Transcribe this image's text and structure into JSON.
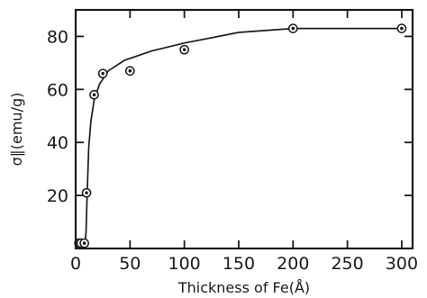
{
  "chart_data": {
    "type": "scatter",
    "title": "",
    "xlabel": "Thickness of Fe(Å)",
    "ylabel": "σ∥(emu/g)",
    "xlim": [
      0,
      310
    ],
    "ylim": [
      0,
      90
    ],
    "x_ticks": [
      "0",
      "50",
      "100",
      "150",
      "200",
      "250",
      "300"
    ],
    "y_ticks": [
      "20",
      "40",
      "60",
      "80"
    ],
    "grid": false,
    "legend": "none",
    "series": [
      {
        "x": [
          3,
          5,
          8,
          10,
          17,
          25,
          50,
          100,
          200,
          300
        ],
        "y": [
          2,
          2,
          2,
          21,
          58,
          66,
          67,
          75,
          83,
          83
        ]
      }
    ],
    "fit_curve": {
      "x": [
        0,
        8,
        9.5,
        10.5,
        12,
        14,
        17,
        22,
        30,
        45,
        70,
        100,
        150,
        200,
        250,
        300
      ],
      "y": [
        0.5,
        0.8,
        6,
        20,
        38,
        48,
        56,
        62,
        67,
        71,
        74.5,
        77.5,
        81.5,
        83,
        83,
        83
      ]
    },
    "colors": {
      "ink": "#1a1a1a",
      "background": "#ffffff"
    }
  }
}
